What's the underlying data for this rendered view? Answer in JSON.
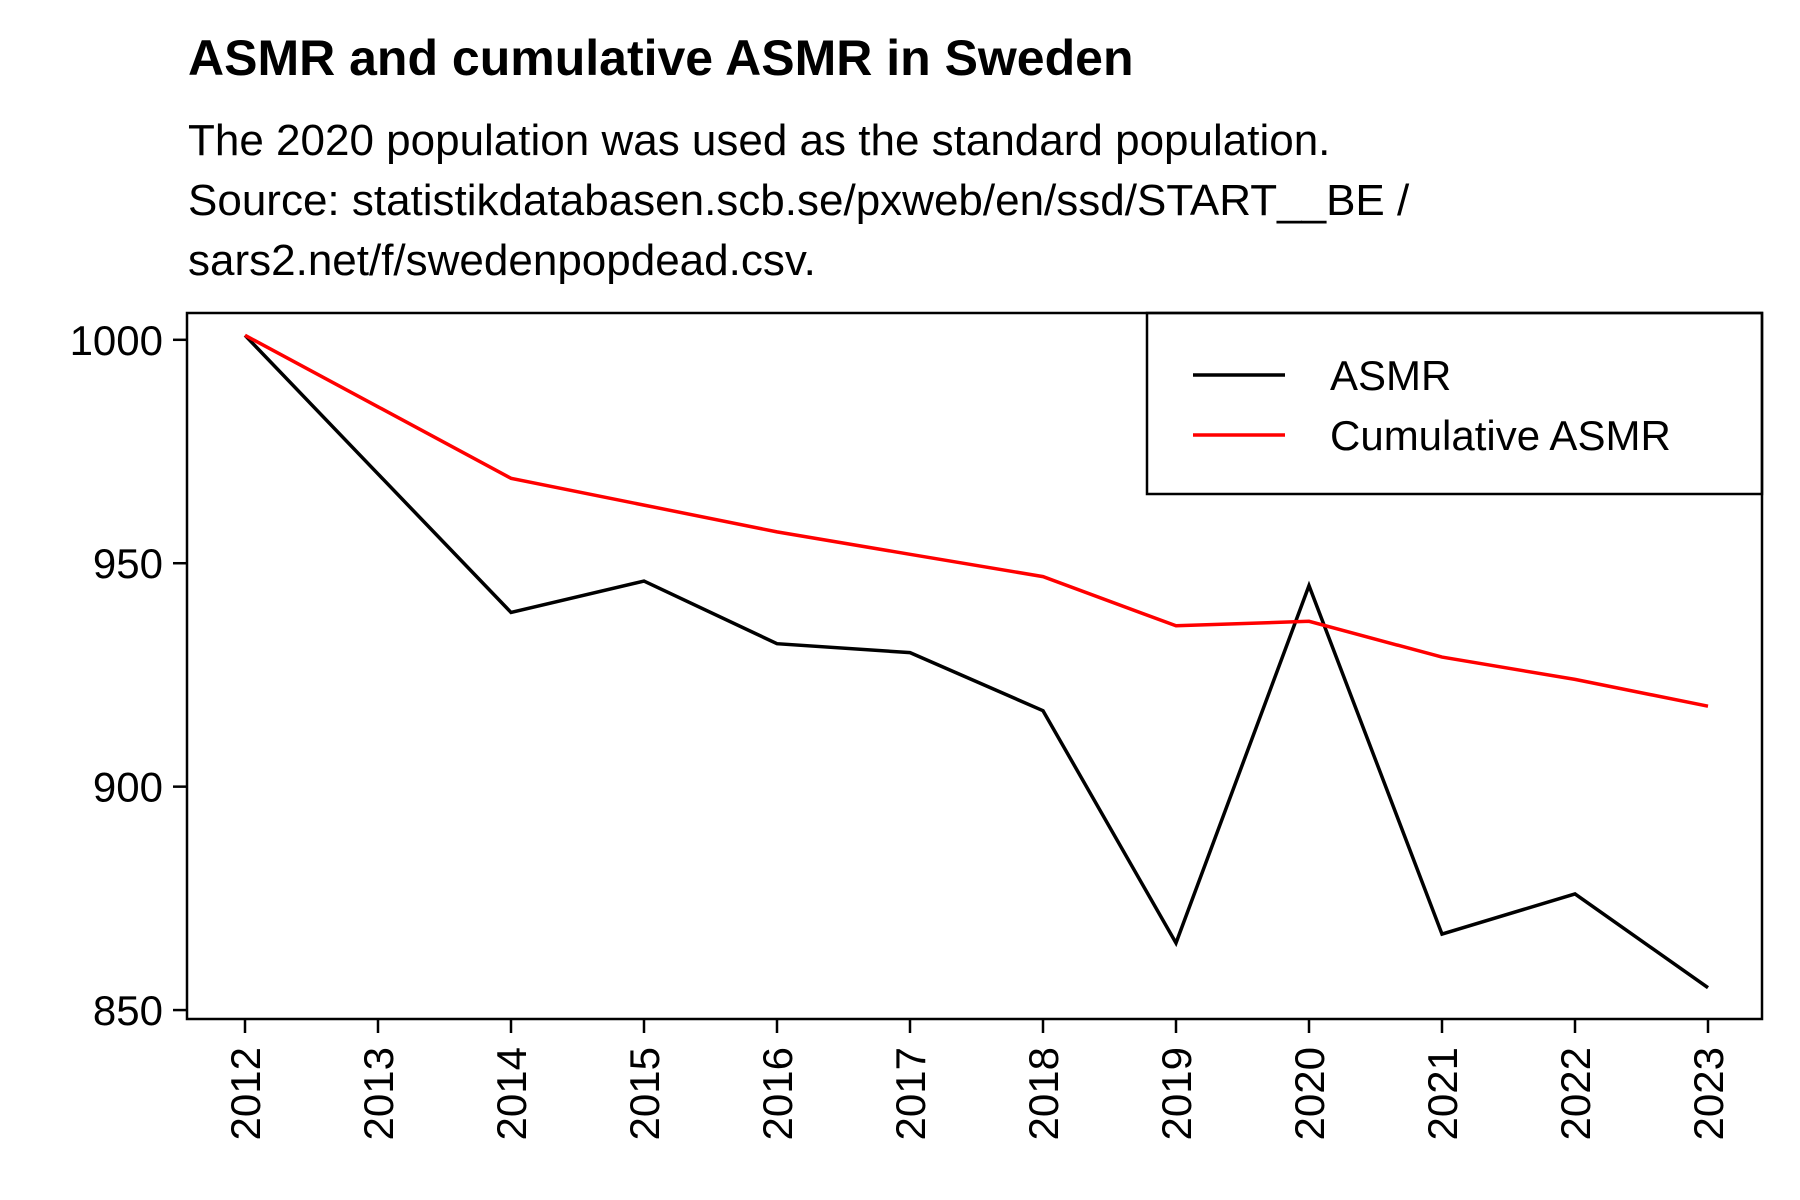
{
  "chart_data": {
    "type": "line",
    "title": "ASMR and cumulative ASMR in Sweden",
    "subtitle": [
      "The 2020 population was used as the standard population.",
      "Source: statistikdatabasen.scb.se/pxweb/en/ssd/START__BE /",
      "sars2.net/f/swedenpopdead.csv."
    ],
    "xlabel": "",
    "ylabel": "",
    "x": [
      "2012",
      "2013",
      "2014",
      "2015",
      "2016",
      "2017",
      "2018",
      "2019",
      "2020",
      "2021",
      "2022",
      "2023"
    ],
    "yticks": [
      850,
      900,
      950,
      1000
    ],
    "ylim": [
      848,
      1006
    ],
    "grid": false,
    "legend_position": "top-right",
    "series": [
      {
        "name": "ASMR",
        "color": "#000000",
        "values": [
          1001,
          970,
          939,
          946,
          932,
          930,
          917,
          865,
          945,
          867,
          876,
          855
        ]
      },
      {
        "name": "Cumulative ASMR",
        "color": "#ff0000",
        "values": [
          1001,
          985,
          969,
          963,
          957,
          952,
          947,
          936,
          937,
          929,
          924,
          918
        ]
      }
    ]
  }
}
